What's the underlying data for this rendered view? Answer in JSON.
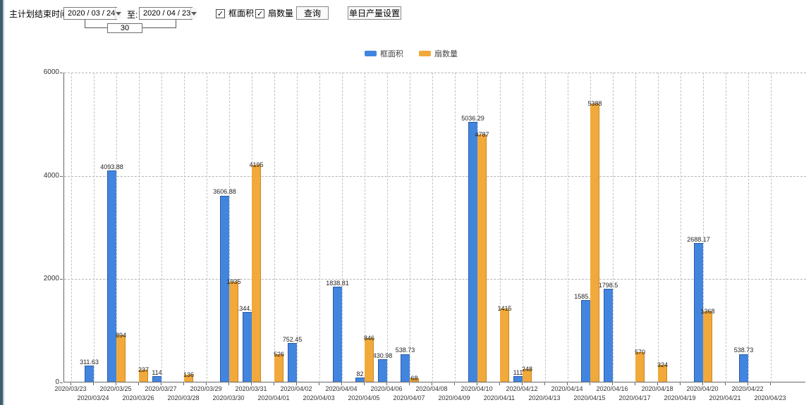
{
  "icons": {
    "checkmark": "✓"
  },
  "toolbar": {
    "plan_end_label": "主计划结束时间:",
    "date_from": "2020 / 03 / 24",
    "to_label": "至:",
    "date_to": "2020 / 04 / 23",
    "interval_days": "30",
    "checkbox_area": {
      "label": "框面积",
      "checked": true
    },
    "checkbox_fans": {
      "label": "扇数量",
      "checked": true
    },
    "query_button": "查询",
    "daily_output_button": "单日产量设置"
  },
  "legend": {
    "items": [
      {
        "label": "框面积",
        "color": "#4285DF"
      },
      {
        "label": "扇数量",
        "color": "#F2A93B"
      }
    ]
  },
  "chart_data": {
    "type": "bar",
    "title": "",
    "xlabel": "",
    "ylabel": "",
    "ylim": [
      0,
      6000
    ],
    "yticks": [
      0,
      2000,
      4000,
      6000
    ],
    "grid": true,
    "legend_position": "top-center",
    "categories": [
      "2020/03/23",
      "2020/03/24",
      "2020/03/25",
      "2020/03/26",
      "2020/03/27",
      "2020/03/28",
      "2020/03/29",
      "2020/03/30",
      "2020/03/31",
      "2020/04/01",
      "2020/04/02",
      "2020/04/03",
      "2020/04/04",
      "2020/04/05",
      "2020/04/06",
      "2020/04/07",
      "2020/04/08",
      "2020/04/09",
      "2020/04/10",
      "2020/04/11",
      "2020/04/12",
      "2020/04/13",
      "2020/04/14",
      "2020/04/15",
      "2020/04/16",
      "2020/04/17",
      "2020/04/18",
      "2020/04/19",
      "2020/04/20",
      "2020/04/21",
      "2020/04/22",
      "2020/04/23"
    ],
    "series": [
      {
        "name": "框面积",
        "color": "#4285DF",
        "values": [
          null,
          311.63,
          4093.88,
          null,
          114,
          null,
          null,
          3606.88,
          1344.95,
          null,
          752.45,
          null,
          1838.81,
          82,
          430.98,
          538.73,
          null,
          null,
          5036.29,
          null,
          111,
          null,
          null,
          1585.96,
          1798.5,
          null,
          null,
          null,
          2688.17,
          null,
          538.73,
          null
        ]
      },
      {
        "name": "扇数量",
        "color": "#F2A93B",
        "values": [
          null,
          null,
          894,
          237,
          null,
          136,
          null,
          1935,
          4195,
          526,
          null,
          null,
          null,
          846,
          null,
          68,
          null,
          null,
          4787,
          1415,
          248,
          null,
          null,
          5388,
          null,
          570,
          324,
          null,
          1368,
          null,
          null,
          null
        ]
      }
    ]
  }
}
